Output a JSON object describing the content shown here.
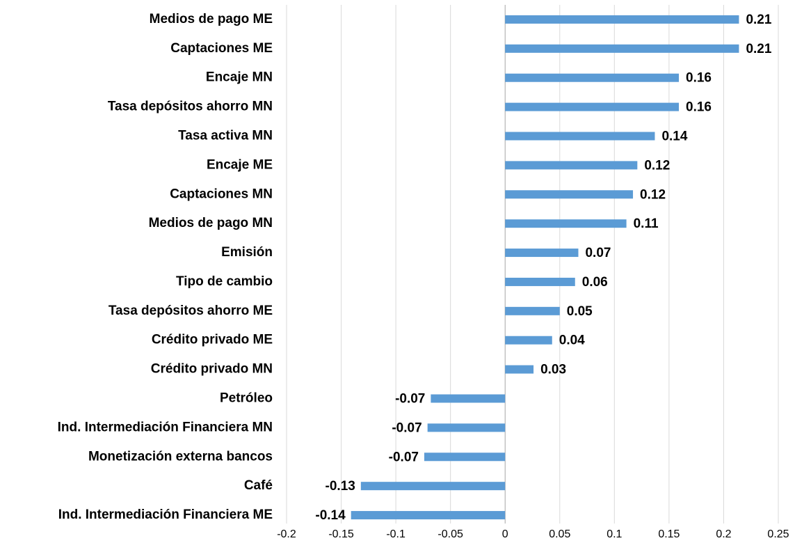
{
  "chart_data": {
    "type": "hbar",
    "categories": [
      "Medios de pago ME",
      "Captaciones ME",
      "Encaje MN",
      "Tasa depósitos ahorro MN",
      "Tasa activa MN",
      "Encaje ME",
      "Captaciones MN",
      "Medios de pago MN",
      "Emisión",
      "Tipo de cambio",
      "Tasa depósitos ahorro ME",
      "Crédito privado ME",
      "Crédito privado MN",
      "Petróleo",
      "Ind. Intermediación Financiera MN",
      "Monetización externa bancos",
      "Café",
      "Ind. Intermediación Financiera ME"
    ],
    "values": [
      0.214,
      0.214,
      0.159,
      0.159,
      0.137,
      0.121,
      0.117,
      0.111,
      0.067,
      0.064,
      0.05,
      0.043,
      0.026,
      -0.068,
      -0.071,
      -0.074,
      -0.132,
      -0.141
    ],
    "value_labels": [
      "0.21",
      "0.21",
      "0.16",
      "0.16",
      "0.14",
      "0.12",
      "0.12",
      "0.11",
      "0.07",
      "0.06",
      "0.05",
      "0.04",
      "0.03",
      "-0.07",
      "-0.07",
      "-0.07",
      "-0.13",
      "-0.14"
    ],
    "color": "#5b9bd5",
    "xlim": [
      -0.2,
      0.25
    ],
    "xticks": [
      -0.2,
      -0.15,
      -0.1,
      -0.05,
      0,
      0.05,
      0.1,
      0.15,
      0.2,
      0.25
    ],
    "grid": true
  }
}
